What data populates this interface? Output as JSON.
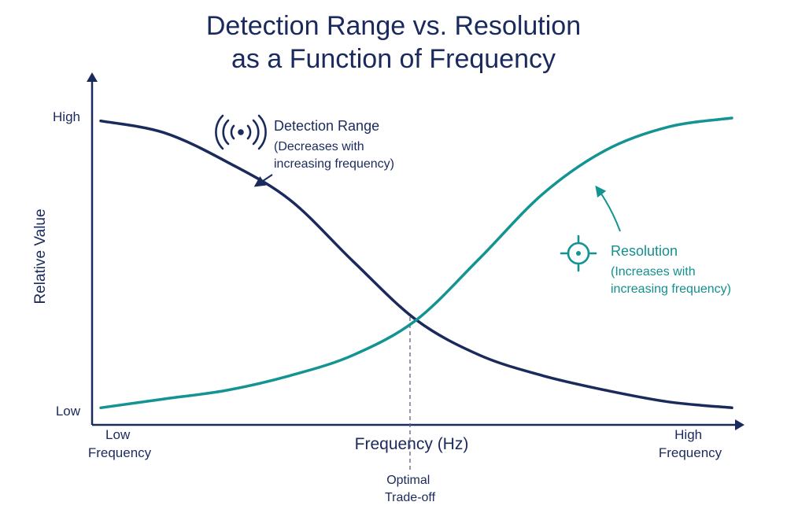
{
  "title_line1": "Detection Range vs. Resolution",
  "title_line2": "as a Function of Frequency",
  "colors": {
    "navy": "#1b2a5c",
    "teal": "#139492",
    "background": "#ffffff"
  },
  "chart_data": {
    "type": "line",
    "title": "Detection Range vs. Resolution as a Function of Frequency",
    "xlabel": "Frequency (Hz)",
    "ylabel": "Relative Value",
    "x_tick_labels": {
      "low": [
        "Low",
        "Frequency"
      ],
      "high": [
        "High",
        "Frequency"
      ]
    },
    "y_tick_labels": {
      "high": "High",
      "low": "Low"
    },
    "xlim": [
      0,
      1
    ],
    "ylim": [
      0,
      1
    ],
    "x": [
      0.0,
      0.1,
      0.2,
      0.3,
      0.4,
      0.5,
      0.6,
      0.7,
      0.8,
      0.9,
      1.0
    ],
    "series": [
      {
        "name": "Detection Range",
        "color": "#1b2a5c",
        "values": [
          0.99,
          0.95,
          0.85,
          0.72,
          0.51,
          0.31,
          0.19,
          0.12,
          0.07,
          0.03,
          0.01
        ],
        "annotation": [
          "Detection Range",
          "(Decreases with",
          "increasing frequency)"
        ],
        "icon": "radio-waves-icon"
      },
      {
        "name": "Resolution",
        "color": "#139492",
        "values": [
          0.01,
          0.04,
          0.07,
          0.12,
          0.19,
          0.31,
          0.52,
          0.74,
          0.89,
          0.97,
          1.0
        ],
        "annotation": [
          "Resolution",
          "(Increases with",
          "increasing frequency)"
        ],
        "icon": "crosshair-target-icon"
      }
    ],
    "reference_line": {
      "x": 0.49,
      "y": 0.32,
      "label": [
        "Optimal",
        "Trade-off"
      ]
    },
    "legend": "none",
    "grid": false
  }
}
